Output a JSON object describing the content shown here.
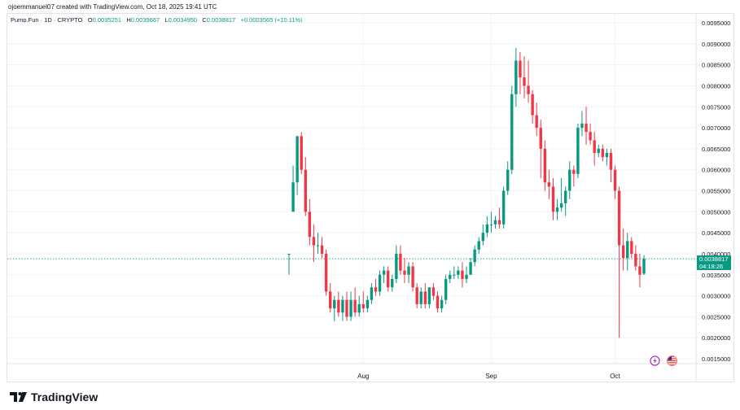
{
  "header": {
    "created_by": "ojoemmanuel07 created with TradingView.com, Oct 18, 2025 19:41 UTC"
  },
  "legend": {
    "symbol": "Pump.Fun · 1D · CRYPTO",
    "o_label": "O",
    "o": "0.0035251",
    "h_label": "H",
    "h": "0.0039667",
    "l_label": "L",
    "l": "0.0034950",
    "c_label": "C",
    "c": "0.0038817",
    "change": "+0.0003565 (+10.11%)"
  },
  "price_tag": {
    "price": "0.0038817",
    "countdown": "04:18:26"
  },
  "brand": {
    "name": "TradingView"
  },
  "icons": {
    "lightning": "lightning-icon",
    "flag": "us-flag-icon"
  },
  "colors": {
    "up": "#089981",
    "down": "#f23645",
    "pricebox": "#089981"
  },
  "chart_data": {
    "type": "candlestick",
    "title": "",
    "xlabel": "",
    "ylabel": "",
    "x_ticks": [
      "Aug",
      "Sep",
      "Oct"
    ],
    "y_ticks": [
      "0.0015000",
      "0.0020000",
      "0.0025000",
      "0.0030000",
      "0.0035000",
      "0.0040000",
      "0.0045000",
      "0.0050000",
      "0.0055000",
      "0.0060000",
      "0.0065000",
      "0.0070000",
      "0.0075000",
      "0.0080000",
      "0.0085000",
      "0.0090000",
      "0.0095000"
    ],
    "ylim": [
      0.0013,
      0.0098
    ],
    "grid": true,
    "last_price": 0.0038817,
    "candles": [
      {
        "date": "2025-07-14",
        "o": 0.004,
        "h": 0.004,
        "l": 0.0035,
        "c": 0.004
      },
      {
        "date": "2025-07-15",
        "o": 0.005,
        "h": 0.0061,
        "l": 0.005,
        "c": 0.0057
      },
      {
        "date": "2025-07-16",
        "o": 0.0057,
        "h": 0.0068,
        "l": 0.0054,
        "c": 0.0068
      },
      {
        "date": "2025-07-17",
        "o": 0.0068,
        "h": 0.0069,
        "l": 0.0059,
        "c": 0.006
      },
      {
        "date": "2025-07-18",
        "o": 0.006,
        "h": 0.0063,
        "l": 0.0049,
        "c": 0.005
      },
      {
        "date": "2025-07-19",
        "o": 0.005,
        "h": 0.0053,
        "l": 0.0042,
        "c": 0.0044
      },
      {
        "date": "2025-07-20",
        "o": 0.0044,
        "h": 0.0047,
        "l": 0.0038,
        "c": 0.0042
      },
      {
        "date": "2025-07-21",
        "o": 0.0042,
        "h": 0.0045,
        "l": 0.004,
        "c": 0.0042
      },
      {
        "date": "2025-07-22",
        "o": 0.0042,
        "h": 0.0044,
        "l": 0.0039,
        "c": 0.004
      },
      {
        "date": "2025-07-23",
        "o": 0.004,
        "h": 0.0041,
        "l": 0.003,
        "c": 0.0031
      },
      {
        "date": "2025-07-24",
        "o": 0.0031,
        "h": 0.0033,
        "l": 0.0026,
        "c": 0.0027
      },
      {
        "date": "2025-07-25",
        "o": 0.0027,
        "h": 0.003,
        "l": 0.0024,
        "c": 0.0029
      },
      {
        "date": "2025-07-26",
        "o": 0.0029,
        "h": 0.0031,
        "l": 0.0025,
        "c": 0.0026
      },
      {
        "date": "2025-07-27",
        "o": 0.0026,
        "h": 0.003,
        "l": 0.0024,
        "c": 0.0029
      },
      {
        "date": "2025-07-28",
        "o": 0.0029,
        "h": 0.0031,
        "l": 0.0024,
        "c": 0.0025
      },
      {
        "date": "2025-07-29",
        "o": 0.0025,
        "h": 0.0031,
        "l": 0.0024,
        "c": 0.0029
      },
      {
        "date": "2025-07-30",
        "o": 0.0029,
        "h": 0.0032,
        "l": 0.0025,
        "c": 0.0026
      },
      {
        "date": "2025-07-31",
        "o": 0.0026,
        "h": 0.003,
        "l": 0.0025,
        "c": 0.0028
      },
      {
        "date": "2025-08-01",
        "o": 0.0028,
        "h": 0.0031,
        "l": 0.0026,
        "c": 0.0027
      },
      {
        "date": "2025-08-02",
        "o": 0.0027,
        "h": 0.003,
        "l": 0.0026,
        "c": 0.0029
      },
      {
        "date": "2025-08-03",
        "o": 0.0029,
        "h": 0.0033,
        "l": 0.0028,
        "c": 0.0032
      },
      {
        "date": "2025-08-04",
        "o": 0.0032,
        "h": 0.0034,
        "l": 0.003,
        "c": 0.0031
      },
      {
        "date": "2025-08-05",
        "o": 0.0031,
        "h": 0.0036,
        "l": 0.003,
        "c": 0.0035
      },
      {
        "date": "2025-08-06",
        "o": 0.0035,
        "h": 0.0037,
        "l": 0.0033,
        "c": 0.0036
      },
      {
        "date": "2025-08-07",
        "o": 0.0036,
        "h": 0.0037,
        "l": 0.0031,
        "c": 0.0032
      },
      {
        "date": "2025-08-08",
        "o": 0.0032,
        "h": 0.0035,
        "l": 0.0031,
        "c": 0.0034
      },
      {
        "date": "2025-08-09",
        "o": 0.0034,
        "h": 0.0042,
        "l": 0.0033,
        "c": 0.004
      },
      {
        "date": "2025-08-10",
        "o": 0.004,
        "h": 0.0042,
        "l": 0.0035,
        "c": 0.0036
      },
      {
        "date": "2025-08-11",
        "o": 0.0036,
        "h": 0.0039,
        "l": 0.0033,
        "c": 0.0035
      },
      {
        "date": "2025-08-12",
        "o": 0.0035,
        "h": 0.0038,
        "l": 0.0033,
        "c": 0.0037
      },
      {
        "date": "2025-08-13",
        "o": 0.0037,
        "h": 0.0038,
        "l": 0.0031,
        "c": 0.0032
      },
      {
        "date": "2025-08-14",
        "o": 0.0032,
        "h": 0.0033,
        "l": 0.0027,
        "c": 0.0028
      },
      {
        "date": "2025-08-15",
        "o": 0.0028,
        "h": 0.0032,
        "l": 0.0027,
        "c": 0.0031
      },
      {
        "date": "2025-08-16",
        "o": 0.0031,
        "h": 0.0033,
        "l": 0.0027,
        "c": 0.0028
      },
      {
        "date": "2025-08-17",
        "o": 0.0028,
        "h": 0.0032,
        "l": 0.0027,
        "c": 0.0032
      },
      {
        "date": "2025-08-18",
        "o": 0.0032,
        "h": 0.0033,
        "l": 0.0029,
        "c": 0.003
      },
      {
        "date": "2025-08-19",
        "o": 0.003,
        "h": 0.0031,
        "l": 0.0026,
        "c": 0.0027
      },
      {
        "date": "2025-08-20",
        "o": 0.0027,
        "h": 0.003,
        "l": 0.0026,
        "c": 0.0029
      },
      {
        "date": "2025-08-21",
        "o": 0.0029,
        "h": 0.0035,
        "l": 0.0028,
        "c": 0.0034
      },
      {
        "date": "2025-08-22",
        "o": 0.0034,
        "h": 0.0036,
        "l": 0.0033,
        "c": 0.0035
      },
      {
        "date": "2025-08-23",
        "o": 0.0035,
        "h": 0.0037,
        "l": 0.0034,
        "c": 0.0035
      },
      {
        "date": "2025-08-24",
        "o": 0.0035,
        "h": 0.0037,
        "l": 0.0034,
        "c": 0.0036
      },
      {
        "date": "2025-08-25",
        "o": 0.0036,
        "h": 0.0038,
        "l": 0.0032,
        "c": 0.0034
      },
      {
        "date": "2025-08-26",
        "o": 0.0034,
        "h": 0.0037,
        "l": 0.0033,
        "c": 0.0035
      },
      {
        "date": "2025-08-27",
        "o": 0.0035,
        "h": 0.0039,
        "l": 0.0035,
        "c": 0.0038
      },
      {
        "date": "2025-08-28",
        "o": 0.0038,
        "h": 0.0042,
        "l": 0.0037,
        "c": 0.0041
      },
      {
        "date": "2025-08-29",
        "o": 0.0041,
        "h": 0.0044,
        "l": 0.004,
        "c": 0.0043
      },
      {
        "date": "2025-08-30",
        "o": 0.0043,
        "h": 0.0047,
        "l": 0.0042,
        "c": 0.0045
      },
      {
        "date": "2025-08-31",
        "o": 0.0045,
        "h": 0.0049,
        "l": 0.0044,
        "c": 0.0047
      },
      {
        "date": "2025-09-01",
        "o": 0.0047,
        "h": 0.005,
        "l": 0.0045,
        "c": 0.0047
      },
      {
        "date": "2025-09-02",
        "o": 0.0047,
        "h": 0.0049,
        "l": 0.0046,
        "c": 0.0048
      },
      {
        "date": "2025-09-03",
        "o": 0.0048,
        "h": 0.0051,
        "l": 0.0046,
        "c": 0.0047
      },
      {
        "date": "2025-09-04",
        "o": 0.0047,
        "h": 0.0056,
        "l": 0.0046,
        "c": 0.0055
      },
      {
        "date": "2025-09-05",
        "o": 0.0055,
        "h": 0.0062,
        "l": 0.0054,
        "c": 0.006
      },
      {
        "date": "2025-09-06",
        "o": 0.006,
        "h": 0.008,
        "l": 0.0059,
        "c": 0.0078
      },
      {
        "date": "2025-09-07",
        "o": 0.0078,
        "h": 0.0089,
        "l": 0.0075,
        "c": 0.0086
      },
      {
        "date": "2025-09-08",
        "o": 0.0086,
        "h": 0.0088,
        "l": 0.0078,
        "c": 0.0082
      },
      {
        "date": "2025-09-09",
        "o": 0.0082,
        "h": 0.0087,
        "l": 0.0077,
        "c": 0.008
      },
      {
        "date": "2025-09-10",
        "o": 0.008,
        "h": 0.0086,
        "l": 0.0076,
        "c": 0.0078
      },
      {
        "date": "2025-09-11",
        "o": 0.0078,
        "h": 0.0079,
        "l": 0.0071,
        "c": 0.0073
      },
      {
        "date": "2025-09-12",
        "o": 0.0073,
        "h": 0.0076,
        "l": 0.0068,
        "c": 0.007
      },
      {
        "date": "2025-09-13",
        "o": 0.007,
        "h": 0.0072,
        "l": 0.0058,
        "c": 0.0065
      },
      {
        "date": "2025-09-14",
        "o": 0.0065,
        "h": 0.0067,
        "l": 0.0055,
        "c": 0.0057
      },
      {
        "date": "2025-09-15",
        "o": 0.0057,
        "h": 0.006,
        "l": 0.0053,
        "c": 0.0056
      },
      {
        "date": "2025-09-16",
        "o": 0.0056,
        "h": 0.0058,
        "l": 0.0048,
        "c": 0.005
      },
      {
        "date": "2025-09-17",
        "o": 0.005,
        "h": 0.0053,
        "l": 0.0048,
        "c": 0.0051
      },
      {
        "date": "2025-09-18",
        "o": 0.0051,
        "h": 0.0058,
        "l": 0.005,
        "c": 0.0052
      },
      {
        "date": "2025-09-19",
        "o": 0.0052,
        "h": 0.0056,
        "l": 0.0049,
        "c": 0.0055
      },
      {
        "date": "2025-09-20",
        "o": 0.0055,
        "h": 0.0062,
        "l": 0.0053,
        "c": 0.006
      },
      {
        "date": "2025-09-21",
        "o": 0.006,
        "h": 0.0061,
        "l": 0.0056,
        "c": 0.0059
      },
      {
        "date": "2025-09-22",
        "o": 0.0059,
        "h": 0.0071,
        "l": 0.0058,
        "c": 0.007
      },
      {
        "date": "2025-09-23",
        "o": 0.007,
        "h": 0.0074,
        "l": 0.0068,
        "c": 0.0071
      },
      {
        "date": "2025-09-24",
        "o": 0.0071,
        "h": 0.0075,
        "l": 0.0066,
        "c": 0.0069
      },
      {
        "date": "2025-09-25",
        "o": 0.0069,
        "h": 0.0071,
        "l": 0.0066,
        "c": 0.0067
      },
      {
        "date": "2025-09-26",
        "o": 0.0067,
        "h": 0.0069,
        "l": 0.0061,
        "c": 0.0064
      },
      {
        "date": "2025-09-27",
        "o": 0.0064,
        "h": 0.0066,
        "l": 0.0063,
        "c": 0.0065
      },
      {
        "date": "2025-09-28",
        "o": 0.0065,
        "h": 0.0066,
        "l": 0.0062,
        "c": 0.0063
      },
      {
        "date": "2025-09-29",
        "o": 0.0063,
        "h": 0.0065,
        "l": 0.0061,
        "c": 0.0064
      },
      {
        "date": "2025-09-30",
        "o": 0.0064,
        "h": 0.0065,
        "l": 0.0057,
        "c": 0.006
      },
      {
        "date": "2025-10-01",
        "o": 0.006,
        "h": 0.0061,
        "l": 0.0053,
        "c": 0.0055
      },
      {
        "date": "2025-10-02",
        "o": 0.0055,
        "h": 0.0056,
        "l": 0.002,
        "c": 0.0042
      },
      {
        "date": "2025-10-03",
        "o": 0.0042,
        "h": 0.0046,
        "l": 0.0036,
        "c": 0.0039
      },
      {
        "date": "2025-10-04",
        "o": 0.0039,
        "h": 0.0045,
        "l": 0.0036,
        "c": 0.0043
      },
      {
        "date": "2025-10-05",
        "o": 0.0043,
        "h": 0.0044,
        "l": 0.0039,
        "c": 0.004
      },
      {
        "date": "2025-10-06",
        "o": 0.004,
        "h": 0.0042,
        "l": 0.0036,
        "c": 0.0037
      },
      {
        "date": "2025-10-07",
        "o": 0.0037,
        "h": 0.004,
        "l": 0.0032,
        "c": 0.0035
      },
      {
        "date": "2025-10-08",
        "o": 0.0035251,
        "h": 0.0039667,
        "l": 0.003495,
        "c": 0.0038817
      }
    ]
  }
}
